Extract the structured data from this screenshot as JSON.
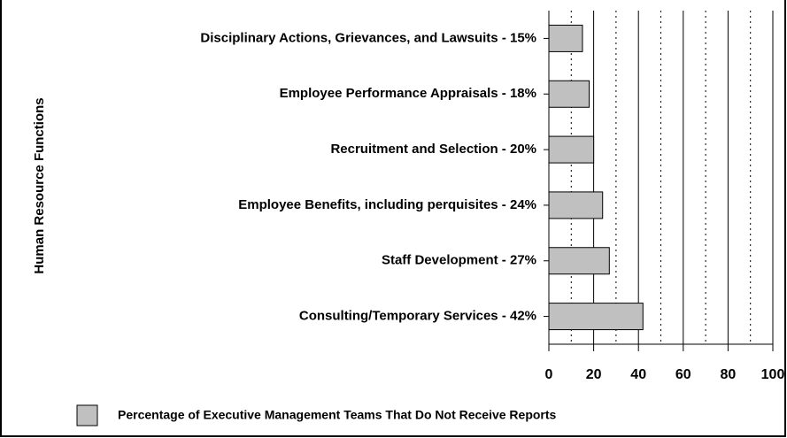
{
  "chart_data": {
    "type": "bar",
    "orientation": "horizontal",
    "ylabel": "Human Resource Functions",
    "categories": [
      "Disciplinary Actions, Grievances, and Lawsuits - 15%",
      "Employee Performance Appraisals - 18%",
      "Recruitment and Selection - 20%",
      "Employee Benefits, including perquisites - 24%",
      "Staff Development - 27%",
      "Consulting/Temporary Services - 42%"
    ],
    "series": [
      {
        "name": "Percentage of Executive Management Teams That Do Not Receive Reports",
        "color": "#c0c0c0",
        "values": [
          15,
          18,
          20,
          24,
          27,
          42
        ]
      }
    ],
    "xlim": [
      0,
      100
    ],
    "xticks": [
      0,
      20,
      40,
      60,
      80,
      100
    ],
    "minor_xticks": [
      10,
      30,
      50,
      70,
      90
    ],
    "grid": true,
    "legend": "bottom-left"
  }
}
